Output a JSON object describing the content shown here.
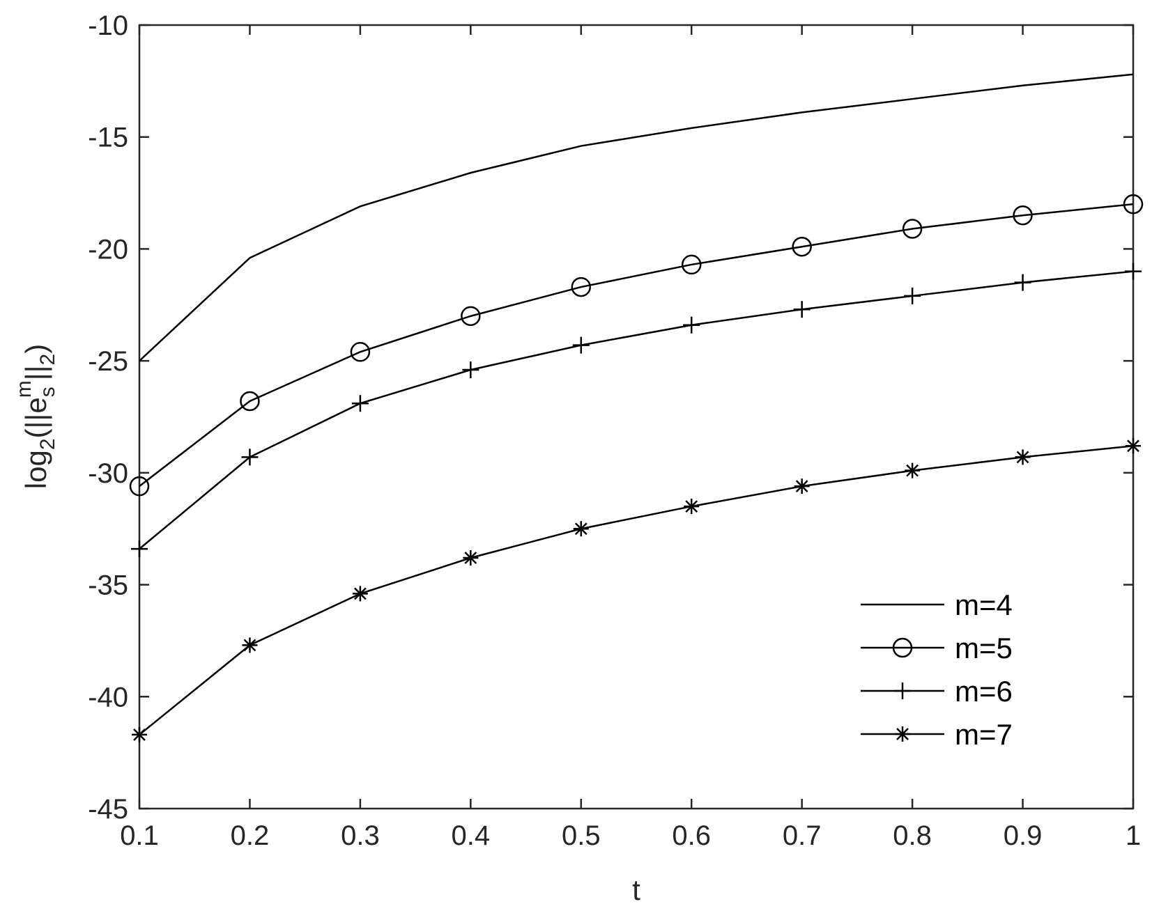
{
  "chart_data": {
    "type": "line",
    "xlabel": "t",
    "ylabel": {
      "base": "log",
      "base_sub": "2",
      "open": "(||e",
      "sub": "s",
      "sup": "m",
      "close": "||",
      "norm_sub": "2",
      "end": ")"
    },
    "xlim": [
      0.1,
      1
    ],
    "ylim": [
      -45,
      -10
    ],
    "xticks": [
      0.1,
      0.2,
      0.3,
      0.4,
      0.5,
      0.6,
      0.7,
      0.8,
      0.9,
      1
    ],
    "xtick_labels": [
      "0.1",
      "0.2",
      "0.3",
      "0.4",
      "0.5",
      "0.6",
      "0.7",
      "0.8",
      "0.9",
      "1"
    ],
    "yticks": [
      -45,
      -40,
      -35,
      -30,
      -25,
      -20,
      -15,
      -10
    ],
    "ytick_labels": [
      "-45",
      "-40",
      "-35",
      "-30",
      "-25",
      "-20",
      "-15",
      "-10"
    ],
    "grid": false,
    "legend_position": "bottom-right",
    "x": [
      0.1,
      0.2,
      0.3,
      0.4,
      0.5,
      0.6,
      0.7,
      0.8,
      0.9,
      1.0
    ],
    "series": [
      {
        "name": "m=4",
        "marker": "none",
        "values": [
          -25.0,
          -20.4,
          -18.1,
          -16.6,
          -15.4,
          -14.6,
          -13.9,
          -13.3,
          -12.7,
          -12.2
        ]
      },
      {
        "name": "m=5",
        "marker": "circle",
        "values": [
          -30.6,
          -26.8,
          -24.6,
          -23.0,
          -21.7,
          -20.7,
          -19.9,
          -19.1,
          -18.5,
          -18.0
        ]
      },
      {
        "name": "m=6",
        "marker": "plus",
        "values": [
          -33.4,
          -29.3,
          -26.9,
          -25.4,
          -24.3,
          -23.4,
          -22.7,
          -22.1,
          -21.5,
          -21.0
        ]
      },
      {
        "name": "m=7",
        "marker": "star",
        "values": [
          -41.7,
          -37.7,
          -35.4,
          -33.8,
          -32.5,
          -31.5,
          -30.6,
          -29.9,
          -29.3,
          -28.8
        ]
      }
    ]
  }
}
